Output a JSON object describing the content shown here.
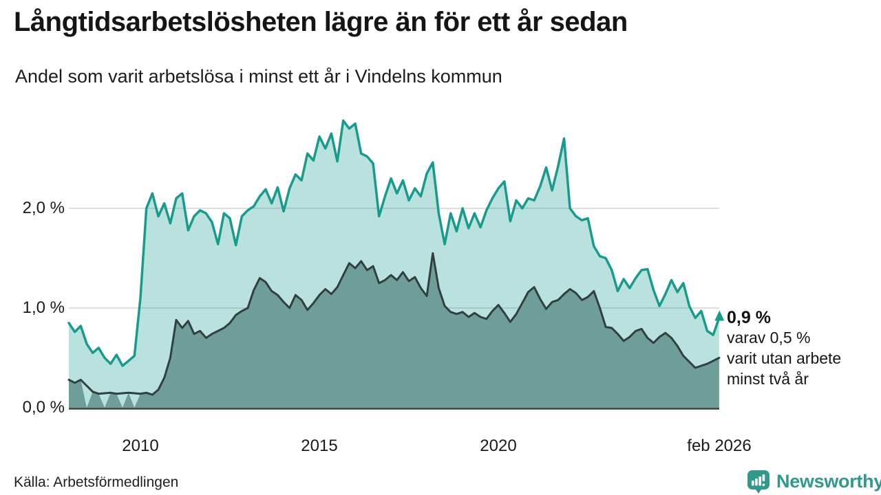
{
  "chart_data": {
    "type": "area",
    "title": "Långtidsarbetslösheten lägre än för ett år sedan",
    "subtitle": "Andel som varit arbetslösa i minst ett år i Vindelns kommun",
    "source": "Källa: Arbetsförmedlingen",
    "grid": "horizontal-only",
    "legend_position": "none",
    "y_axis": {
      "unit": "%",
      "range": [
        0,
        2.9
      ],
      "ticks": [
        {
          "label": "0,0 %",
          "value": 0
        },
        {
          "label": "1,0 %",
          "value": 1
        },
        {
          "label": "2,0 %",
          "value": 2
        }
      ]
    },
    "x_axis": {
      "range_years": [
        2008.0,
        2026.17
      ],
      "ticks": [
        {
          "label": "2010",
          "year": 2010
        },
        {
          "label": "2015",
          "year": 2015
        },
        {
          "label": "2020",
          "year": 2020
        },
        {
          "label": "feb 2026",
          "year": 2026.083
        }
      ]
    },
    "series": [
      {
        "name": "Andel arbetslösa minst ett år",
        "line_color": "#189a8d",
        "fill_color": "rgba(24,154,141,0.30)",
        "line_width": 3.5,
        "x_start": 2008.0,
        "x_step": 0.166667,
        "values": [
          0.85,
          0.76,
          0.82,
          0.64,
          0.55,
          0.6,
          0.5,
          0.44,
          0.53,
          0.42,
          0.47,
          0.52,
          1.1,
          2.0,
          2.15,
          1.92,
          2.05,
          1.85,
          2.1,
          2.15,
          1.78,
          1.92,
          1.98,
          1.95,
          1.86,
          1.64,
          1.95,
          1.9,
          1.63,
          1.92,
          1.98,
          2.02,
          2.12,
          2.19,
          2.05,
          2.21,
          1.97,
          2.2,
          2.34,
          2.28,
          2.55,
          2.48,
          2.72,
          2.6,
          2.75,
          2.47,
          2.88,
          2.8,
          2.85,
          2.55,
          2.52,
          2.45,
          1.92,
          2.12,
          2.3,
          2.15,
          2.28,
          2.08,
          2.2,
          2.12,
          2.35,
          2.46,
          1.95,
          1.64,
          1.95,
          1.77,
          2.0,
          1.8,
          1.95,
          1.81,
          1.98,
          2.1,
          2.2,
          2.27,
          1.87,
          2.08,
          2.0,
          2.1,
          2.08,
          2.22,
          2.41,
          2.18,
          2.42,
          2.7,
          2.0,
          1.92,
          1.88,
          1.9,
          1.62,
          1.52,
          1.5,
          1.38,
          1.17,
          1.29,
          1.2,
          1.3,
          1.38,
          1.39,
          1.18,
          1.02,
          1.14,
          1.28,
          1.16,
          1.25,
          1.02,
          0.9,
          0.97,
          0.77,
          0.73,
          0.9
        ]
      },
      {
        "name": "varav arbetslösa minst två år",
        "line_color": "#2f403e",
        "fill_color": "#6f9d98",
        "line_width": 3,
        "x_start": 2008.0,
        "x_step": 0.166667,
        "values": [
          0.28,
          0.25,
          0.28,
          0,
          0.16,
          0.14,
          0,
          0.15,
          0.14,
          0,
          0.15,
          0,
          0.14,
          0.15,
          0.13,
          0.18,
          0.3,
          0.5,
          0.88,
          0.8,
          0.87,
          0.74,
          0.77,
          0.7,
          0.74,
          0.77,
          0.8,
          0.85,
          0.93,
          0.97,
          1.0,
          1.18,
          1.3,
          1.26,
          1.17,
          1.13,
          1.06,
          1.0,
          1.13,
          1.08,
          0.98,
          1.05,
          1.13,
          1.19,
          1.14,
          1.21,
          1.33,
          1.45,
          1.4,
          1.47,
          1.38,
          1.42,
          1.25,
          1.28,
          1.33,
          1.28,
          1.36,
          1.27,
          1.31,
          1.2,
          1.12,
          1.55,
          1.2,
          1.02,
          0.96,
          0.94,
          0.96,
          0.91,
          0.95,
          0.91,
          0.89,
          0.97,
          1.03,
          0.95,
          0.86,
          0.94,
          1.05,
          1.16,
          1.21,
          1.09,
          0.99,
          1.06,
          1.08,
          1.14,
          1.19,
          1.15,
          1.08,
          1.11,
          1.17,
          1.0,
          0.81,
          0.8,
          0.74,
          0.67,
          0.71,
          0.77,
          0.79,
          0.7,
          0.65,
          0.71,
          0.75,
          0.7,
          0.62,
          0.52,
          0.46,
          0.4,
          0.42,
          0.44,
          0.47,
          0.5
        ]
      }
    ],
    "end_annotation": {
      "headline": "0,9 %",
      "lines": [
        "varav 0,5 %",
        "varit utan arbete",
        "minst två år"
      ],
      "marker": "up-arrow"
    },
    "last_values": {
      "minst_ett_ar": 0.9,
      "minst_tva_ar": 0.5
    }
  },
  "brand": {
    "name": "Newsworthy",
    "color": "#31988e"
  },
  "colors": {
    "teal_line": "#189a8d",
    "light_fill": "rgba(24,154,141,0.30)",
    "dark_line": "#2f403e",
    "dark_fill": "#6f9d98",
    "gridline": "#d4d4d4",
    "axis_line": "#3f4442"
  }
}
